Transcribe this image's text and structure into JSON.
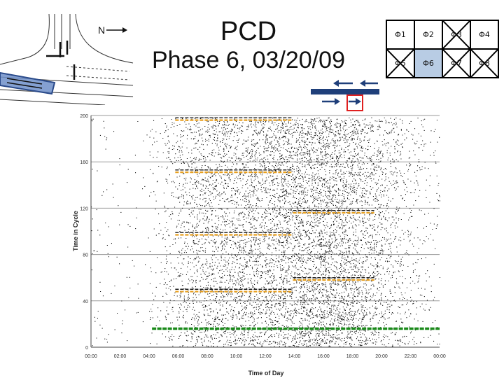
{
  "slide": {
    "title_line1": "PCD",
    "title_line2": "Phase 6, 03/20/09",
    "north_label": "N"
  },
  "phase_table": [
    {
      "label": "Φ1",
      "crossed": false,
      "highlighted": false
    },
    {
      "label": "Φ2",
      "crossed": false,
      "highlighted": false
    },
    {
      "label": "Φ3",
      "crossed": true,
      "highlighted": false
    },
    {
      "label": "Φ4",
      "crossed": false,
      "highlighted": false
    },
    {
      "label": "Φ5",
      "crossed": true,
      "highlighted": false
    },
    {
      "label": "Φ6",
      "crossed": false,
      "highlighted": true
    },
    {
      "label": "Φ7",
      "crossed": true,
      "highlighted": false
    },
    {
      "label": "Φ8",
      "crossed": true,
      "highlighted": false
    }
  ],
  "colors": {
    "arrival_dots": "#111111",
    "green_band": "#1a8a1a",
    "yellow_band": "#e8a020",
    "red_band": "#1a1a1a",
    "gridline": "#9a9a9a",
    "highlight_box": "#e02020",
    "arrow_blue": "#1f3f7a",
    "phase_fill": "#b8cce4"
  },
  "chart_data": {
    "type": "scatter",
    "title": "",
    "xlabel": "Time of Day",
    "ylabel": "Time in Cycle",
    "x_ticks": [
      "00:00",
      "02:00",
      "04:00",
      "06:00",
      "08:00",
      "10:00",
      "12:00",
      "14:00",
      "16:00",
      "18:00",
      "20:00",
      "22:00",
      "00:00"
    ],
    "y_ticks": [
      "0",
      "40",
      "80",
      "120",
      "160",
      "200"
    ],
    "xlim": [
      0,
      24
    ],
    "ylim": [
      0,
      200
    ],
    "grid": "horizontal",
    "series": [
      {
        "kind": "green_end",
        "segments": [
          {
            "x": [
              4.2,
              24
            ],
            "y": 16
          }
        ]
      },
      {
        "kind": "yellow_end",
        "segments": [
          {
            "x": [
              5.8,
              13.9
            ],
            "y": 196
          },
          {
            "x": [
              5.8,
              13.9
            ],
            "y": 151
          },
          {
            "x": [
              5.8,
              13.9
            ],
            "y": 97
          },
          {
            "x": [
              5.8,
              13.9
            ],
            "y": 48
          },
          {
            "x": [
              13.9,
              19.5
            ],
            "y": 116
          },
          {
            "x": [
              13.9,
              19.5
            ],
            "y": 58
          }
        ]
      },
      {
        "kind": "red_end",
        "segments": [
          {
            "x": [
              5.8,
              13.9
            ],
            "y": 198
          },
          {
            "x": [
              5.8,
              13.9
            ],
            "y": 153
          },
          {
            "x": [
              5.8,
              13.9
            ],
            "y": 99
          },
          {
            "x": [
              5.8,
              13.9
            ],
            "y": 50
          },
          {
            "x": [
              13.9,
              19.5
            ],
            "y": 118
          },
          {
            "x": [
              13.9,
              19.5
            ],
            "y": 60
          }
        ]
      },
      {
        "kind": "arrivals",
        "density_by_hour": [
          0.3,
          0.2,
          0.15,
          0.15,
          0.6,
          1.4,
          2.4,
          3.2,
          3.6,
          3.8,
          4.0,
          4.3,
          4.6,
          5.0,
          5.6,
          6.0,
          5.8,
          5.2,
          4.4,
          3.4,
          2.4,
          1.6,
          1.0,
          0.6
        ]
      }
    ]
  }
}
